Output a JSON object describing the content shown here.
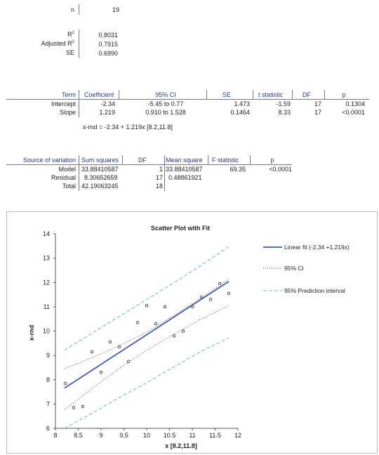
{
  "summary": {
    "n_label": "n",
    "n_value": "19",
    "r2_label": "R",
    "r2_sup": "2",
    "r2_value": "0.8031",
    "adjr2_label": "Adjusted R",
    "adjr2_sup": "2",
    "adjr2_value": "0.7915",
    "se_label": "SE",
    "se_value": "0.6990"
  },
  "coef_table": {
    "headers": [
      "Term",
      "Coefficient",
      "95% CI",
      "SE",
      "t statistic",
      "DF",
      "p"
    ],
    "rows": [
      [
        "Intercept",
        "-2.34",
        "-5.45 to 0.77",
        "1.473",
        "-1.59",
        "17",
        "0.1304"
      ],
      [
        "Slope",
        "1.219",
        "0.910 to 1.528",
        "0.1464",
        "8.33",
        "17",
        "<0.0001"
      ]
    ],
    "equation": "x-rnd = -2.34 + 1.219x [8.2,11.8]"
  },
  "anova_table": {
    "headers": [
      "Source of variation",
      "Sum squares",
      "DF",
      "Mean square",
      "F statistic",
      "p"
    ],
    "rows": [
      [
        "Model",
        "33.88410587",
        "1",
        "33.88410587",
        "69.35",
        "<0.0001"
      ],
      [
        "Residual",
        "8.30652659",
        "17",
        "0.48861921",
        "",
        ""
      ],
      [
        "Total",
        "42.19063245",
        "18",
        "",
        "",
        ""
      ]
    ]
  },
  "chart_data": {
    "type": "scatter",
    "title": "Scatter Plot with Fit",
    "xlabel": "x [8.2,11.8]",
    "ylabel": "x-rnd",
    "xlim": [
      8,
      12
    ],
    "ylim": [
      6,
      14
    ],
    "xticks": [
      "8",
      "8.5",
      "9",
      "9.5",
      "10",
      "10.5",
      "11",
      "11.5",
      "12"
    ],
    "yticks": [
      "6",
      "7",
      "8",
      "9",
      "10",
      "11",
      "12",
      "13",
      "14"
    ],
    "grid": false,
    "legend_position": "right",
    "points": {
      "x": [
        8.22,
        8.4,
        8.6,
        8.8,
        9.0,
        9.2,
        9.4,
        9.6,
        9.8,
        10.0,
        10.2,
        10.4,
        10.6,
        10.8,
        11.0,
        11.2,
        11.4,
        11.6,
        11.8
      ],
      "y": [
        7.85,
        6.85,
        6.9,
        9.15,
        8.3,
        9.55,
        9.35,
        8.75,
        10.35,
        11.05,
        10.3,
        11.0,
        9.8,
        10.0,
        11.0,
        11.4,
        11.3,
        11.95,
        11.55
      ]
    },
    "fit": {
      "intercept": -2.34,
      "slope": 1.219,
      "x_range": [
        8.2,
        11.8
      ]
    },
    "ci": {
      "x": [
        8.2,
        8.8,
        9.4,
        10.0,
        10.6,
        11.2,
        11.8
      ],
      "upper": [
        8.45,
        8.9,
        9.4,
        9.96,
        10.64,
        11.38,
        12.15
      ],
      "lower": [
        6.77,
        7.63,
        8.47,
        9.21,
        9.88,
        10.5,
        11.04
      ]
    },
    "pi": {
      "x": [
        8.2,
        8.8,
        9.4,
        10.0,
        10.6,
        11.2,
        11.8
      ],
      "upper": [
        9.22,
        9.91,
        10.6,
        11.3,
        11.99,
        12.71,
        13.47
      ],
      "lower": [
        6.0,
        6.62,
        7.27,
        7.87,
        8.53,
        9.17,
        9.72
      ]
    },
    "legend": [
      {
        "label": "Linear fit (-2.34  +1.219x)",
        "style": "solid",
        "color": "#3b5bc0"
      },
      {
        "label": "95% CI",
        "style": "dotted",
        "color": "#3a3a3a"
      },
      {
        "label": "95% Prediction interval",
        "style": "dashed",
        "color": "#5cc4b0"
      }
    ]
  }
}
